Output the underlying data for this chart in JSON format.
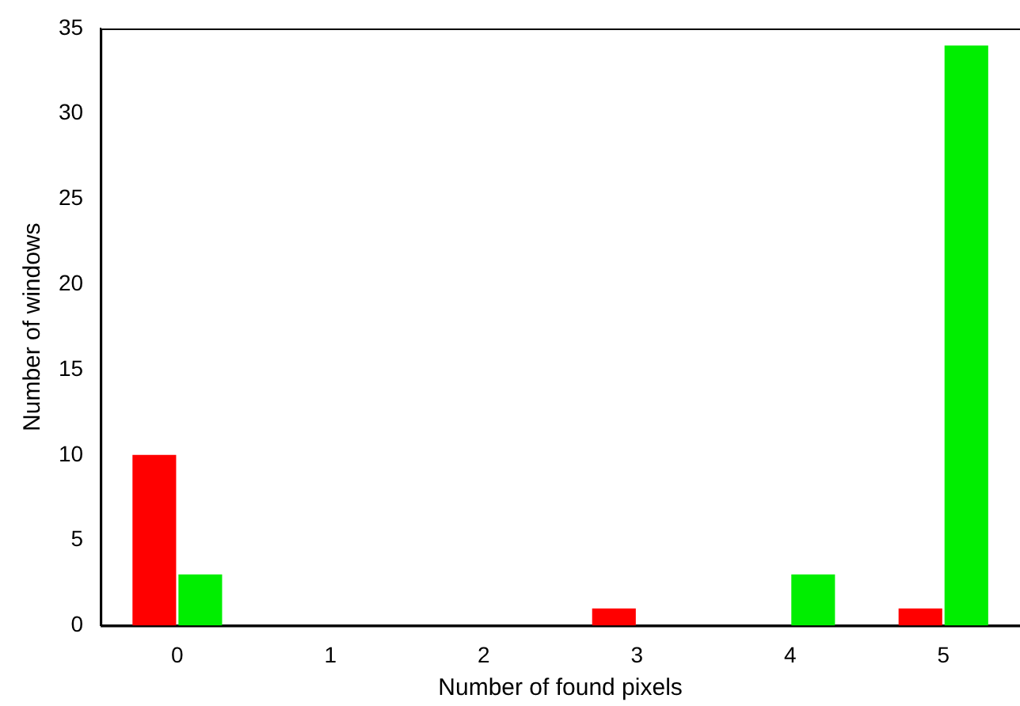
{
  "chart_data": {
    "type": "bar",
    "xlabel": "Number of found pixels",
    "ylabel": "Number of windows",
    "categories": [
      "0",
      "1",
      "2",
      "3",
      "4",
      "5"
    ],
    "series": [
      {
        "color": "#ff0000",
        "values": [
          10,
          0,
          0,
          1,
          0,
          1
        ]
      },
      {
        "color": "#00ee00",
        "values": [
          3,
          0,
          0,
          0,
          3,
          34
        ]
      }
    ],
    "ylim": [
      0,
      35
    ],
    "yticks": [
      0,
      5,
      10,
      15,
      20,
      25,
      30,
      35
    ],
    "grid": false,
    "legend": false
  }
}
